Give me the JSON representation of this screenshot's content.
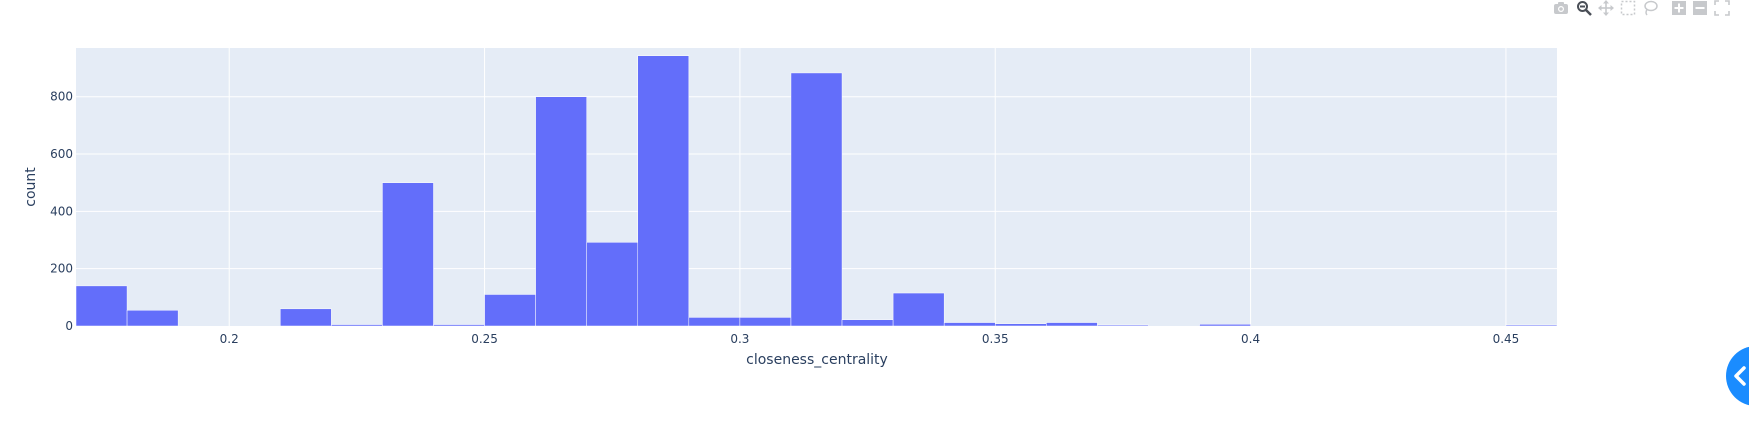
{
  "modebar": {
    "icons": [
      "camera-icon",
      "zoom-icon",
      "pan-icon",
      "box-select-icon",
      "lasso-icon",
      "zoom-in-icon",
      "zoom-out-icon",
      "autoscale-icon"
    ]
  },
  "colors": {
    "plot_background": "#e5ecf6",
    "bar_fill": "#636efa",
    "grid": "#ffffff",
    "text": "#2a3f5f",
    "fab": "#1a8cff"
  },
  "chart_data": {
    "type": "bar",
    "title": "",
    "xlabel": "closeness_centrality",
    "ylabel": "count",
    "xlim": [
      0.17,
      0.46
    ],
    "ylim": [
      0,
      970
    ],
    "x_ticks": [
      "0.2",
      "0.25",
      "0.3",
      "0.35",
      "0.4",
      "0.45"
    ],
    "x_tick_values": [
      0.2,
      0.25,
      0.3,
      0.35,
      0.4,
      0.45
    ],
    "y_ticks": [
      "0",
      "200",
      "400",
      "600",
      "800"
    ],
    "y_tick_values": [
      0,
      200,
      400,
      600,
      800
    ],
    "grid": true,
    "bin_width": 0.01,
    "bins": [
      {
        "x0": 0.17,
        "x1": 0.18,
        "count": 140
      },
      {
        "x0": 0.18,
        "x1": 0.19,
        "count": 55
      },
      {
        "x0": 0.19,
        "x1": 0.2,
        "count": 0
      },
      {
        "x0": 0.2,
        "x1": 0.21,
        "count": 0
      },
      {
        "x0": 0.21,
        "x1": 0.22,
        "count": 60
      },
      {
        "x0": 0.22,
        "x1": 0.23,
        "count": 5
      },
      {
        "x0": 0.23,
        "x1": 0.24,
        "count": 500
      },
      {
        "x0": 0.24,
        "x1": 0.25,
        "count": 5
      },
      {
        "x0": 0.25,
        "x1": 0.26,
        "count": 110
      },
      {
        "x0": 0.26,
        "x1": 0.27,
        "count": 800
      },
      {
        "x0": 0.27,
        "x1": 0.28,
        "count": 292
      },
      {
        "x0": 0.28,
        "x1": 0.29,
        "count": 943
      },
      {
        "x0": 0.29,
        "x1": 0.3,
        "count": 30
      },
      {
        "x0": 0.3,
        "x1": 0.31,
        "count": 30
      },
      {
        "x0": 0.31,
        "x1": 0.32,
        "count": 883
      },
      {
        "x0": 0.32,
        "x1": 0.33,
        "count": 22
      },
      {
        "x0": 0.33,
        "x1": 0.34,
        "count": 115
      },
      {
        "x0": 0.34,
        "x1": 0.35,
        "count": 12
      },
      {
        "x0": 0.35,
        "x1": 0.36,
        "count": 8
      },
      {
        "x0": 0.36,
        "x1": 0.37,
        "count": 12
      },
      {
        "x0": 0.37,
        "x1": 0.38,
        "count": 2
      },
      {
        "x0": 0.38,
        "x1": 0.39,
        "count": 0
      },
      {
        "x0": 0.39,
        "x1": 0.4,
        "count": 6
      },
      {
        "x0": 0.4,
        "x1": 0.41,
        "count": 0
      },
      {
        "x0": 0.41,
        "x1": 0.42,
        "count": 0
      },
      {
        "x0": 0.42,
        "x1": 0.43,
        "count": 0
      },
      {
        "x0": 0.43,
        "x1": 0.44,
        "count": 0
      },
      {
        "x0": 0.44,
        "x1": 0.45,
        "count": 0
      },
      {
        "x0": 0.45,
        "x1": 0.46,
        "count": 3
      }
    ]
  }
}
